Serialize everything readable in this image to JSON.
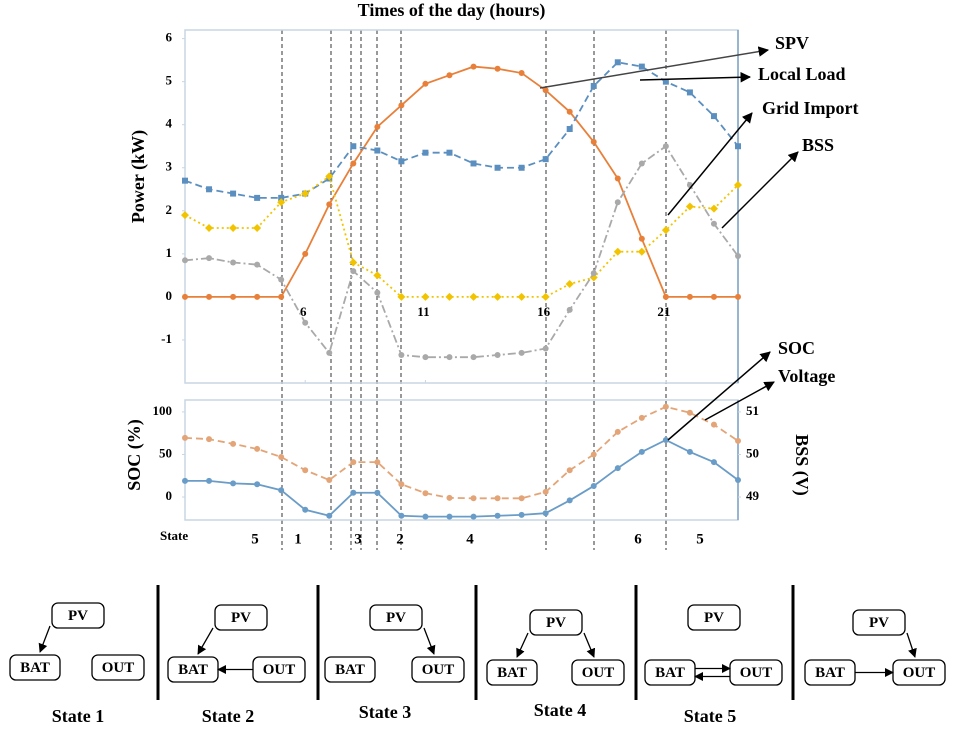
{
  "chart_data": [
    {
      "type": "line",
      "title": "Times of the day (hours)",
      "ylabel": "Power (kW)",
      "x": [
        1,
        2,
        3,
        4,
        5,
        6,
        7,
        8,
        9,
        10,
        11,
        12,
        13,
        14,
        15,
        16,
        17,
        18,
        19,
        20,
        21,
        22,
        23,
        24
      ],
      "xlim": [
        1,
        24
      ],
      "xticks": [
        6,
        11,
        16,
        21
      ],
      "ylim": [
        -2,
        6.2
      ],
      "yticks": [
        -1,
        0,
        1,
        2,
        3,
        4,
        5,
        6
      ],
      "grid": false,
      "series": [
        {
          "name": "SPV",
          "color": "#e8803a",
          "line_style": "solid",
          "marker": "circle",
          "values": [
            0,
            0,
            0,
            0,
            0,
            1.0,
            2.15,
            3.1,
            3.95,
            4.45,
            4.95,
            5.15,
            5.35,
            5.3,
            5.2,
            4.8,
            4.3,
            3.6,
            2.75,
            1.35,
            0,
            0,
            0,
            0
          ]
        },
        {
          "name": "Local Load",
          "color": "#5b8fc0",
          "line_style": "dashed",
          "marker": "square",
          "values": [
            2.7,
            2.5,
            2.4,
            2.3,
            2.3,
            2.4,
            2.75,
            3.5,
            3.4,
            3.15,
            3.35,
            3.35,
            3.1,
            3.0,
            3.0,
            3.2,
            3.9,
            4.9,
            5.45,
            5.35,
            5.0,
            4.75,
            4.2,
            3.5
          ]
        },
        {
          "name": "Grid Import",
          "color": "#f2c400",
          "line_style": "dotted",
          "marker": "diamond",
          "values": [
            1.9,
            1.6,
            1.6,
            1.6,
            2.2,
            2.4,
            2.8,
            0.8,
            0.5,
            0,
            0,
            0,
            0,
            0,
            0,
            0,
            0.3,
            0.45,
            1.05,
            1.05,
            1.55,
            2.1,
            2.05,
            2.6
          ]
        },
        {
          "name": "BSS",
          "color": "#a9a9a9",
          "line_style": "dashdot",
          "marker": "circle",
          "values": [
            0.85,
            0.9,
            0.8,
            0.75,
            0.4,
            -0.6,
            -1.3,
            0.6,
            0.1,
            -1.35,
            -1.4,
            -1.4,
            -1.4,
            -1.35,
            -1.3,
            -1.2,
            -0.3,
            0.55,
            2.2,
            3.1,
            3.5,
            2.6,
            1.7,
            0.95
          ]
        }
      ],
      "annotations": [
        "SPV",
        "Local Load",
        "Grid Import",
        "BSS"
      ]
    },
    {
      "type": "line",
      "ylabel": "SOC (%)",
      "y2label": "BSS (V)",
      "x": [
        1,
        2,
        3,
        4,
        5,
        6,
        7,
        8,
        9,
        10,
        11,
        12,
        13,
        14,
        15,
        16,
        17,
        18,
        19,
        20,
        21,
        22,
        23,
        24
      ],
      "xlim": [
        1,
        24
      ],
      "ylim": [
        -27,
        114
      ],
      "yticks": [
        0,
        50,
        100
      ],
      "y2lim": [
        48.46,
        51.28
      ],
      "y2ticks": [
        49,
        50,
        51
      ],
      "grid": false,
      "series": [
        {
          "name": "SOC",
          "color": "#6a9cc8",
          "line_style": "solid",
          "marker": "circle",
          "values": [
            19,
            19,
            16,
            15,
            8,
            -15,
            -22,
            5,
            5,
            -22,
            -23,
            -23,
            -23,
            -22,
            -21,
            -19,
            -4,
            13,
            34,
            53,
            67,
            53,
            41,
            20
          ]
        },
        {
          "name": "Voltage",
          "color": "#e3a577",
          "line_style": "dashed",
          "marker": "circle",
          "axis": "y2",
          "values": [
            50.39,
            50.36,
            50.25,
            50.13,
            49.94,
            49.63,
            49.4,
            49.82,
            49.82,
            49.3,
            49.09,
            48.98,
            48.97,
            48.97,
            48.97,
            49.12,
            49.63,
            50.0,
            50.53,
            50.86,
            51.12,
            50.98,
            50.7,
            50.32
          ]
        }
      ],
      "annotations": [
        "SOC",
        "Voltage"
      ]
    }
  ],
  "state_row": {
    "label": "State",
    "states": [
      "5",
      "1",
      "3",
      "2",
      "4",
      "6",
      "5"
    ]
  },
  "state_diagrams": [
    {
      "label": "State 1",
      "nodes": [
        "PV",
        "BAT",
        "OUT"
      ]
    },
    {
      "label": "State 2",
      "nodes": [
        "PV",
        "BAT",
        "OUT"
      ]
    },
    {
      "label": "State 3",
      "nodes": [
        "PV",
        "BAT",
        "OUT"
      ]
    },
    {
      "label": "State 4",
      "nodes": [
        "PV",
        "BAT",
        "OUT"
      ]
    },
    {
      "label": "State 5",
      "nodes": [
        "PV",
        "BAT",
        "OUT"
      ]
    },
    {
      "nodes": [
        "PV",
        "BAT",
        "OUT"
      ]
    }
  ]
}
